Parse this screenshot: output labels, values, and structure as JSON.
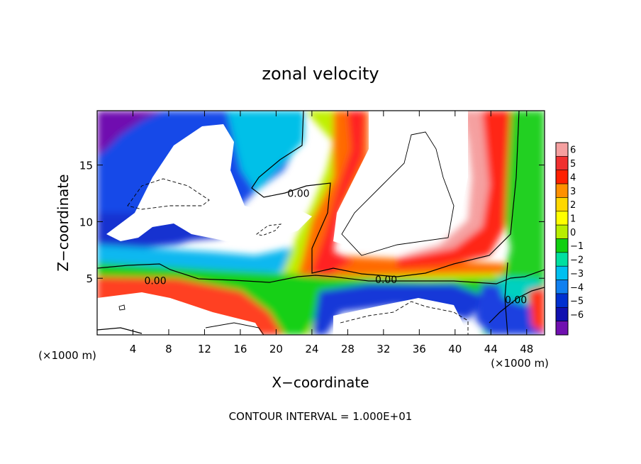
{
  "chart_data": {
    "type": "heatmap",
    "title": "zonal velocity",
    "xlabel": "X−coordinate",
    "ylabel": "Z−coordinate",
    "x_unit_left": "(×1000 m)",
    "x_unit_right": "(×1000 m)",
    "xlim": [
      0,
      50
    ],
    "ylim": [
      0,
      19.8
    ],
    "x_ticks": [
      4,
      8,
      12,
      16,
      20,
      24,
      28,
      32,
      36,
      40,
      44,
      48
    ],
    "y_ticks": [
      5,
      10,
      15
    ],
    "footer": "CONTOUR INTERVAL = 1.000E+01",
    "contour_labels": [
      {
        "text": "0.00",
        "x": 22.5,
        "y": 12.5
      },
      {
        "text": "0.00",
        "x": 6.5,
        "y": 4.8
      },
      {
        "text": "0.00",
        "x": 32.3,
        "y": 4.9
      },
      {
        "text": "0.00",
        "x": 46.8,
        "y": 3.1
      }
    ],
    "colorbar": {
      "levels": [
        6,
        5,
        4,
        3,
        2,
        1,
        0,
        -1,
        -2,
        -3,
        -4,
        -5,
        -6
      ],
      "labels": [
        "6",
        "5",
        "4",
        "3",
        "2",
        "1",
        "0",
        "−1",
        "−2",
        "−3",
        "−4",
        "−5",
        "−6"
      ],
      "colors": [
        "#f5a0a0",
        "#f03030",
        "#ff2000",
        "#ff9000",
        "#ffd800",
        "#ffff00",
        "#b8ee00",
        "#10d010",
        "#00e0a0",
        "#00c0f0",
        "#1080f0",
        "#0030d0",
        "#1010b0",
        "#7010b0"
      ]
    }
  }
}
